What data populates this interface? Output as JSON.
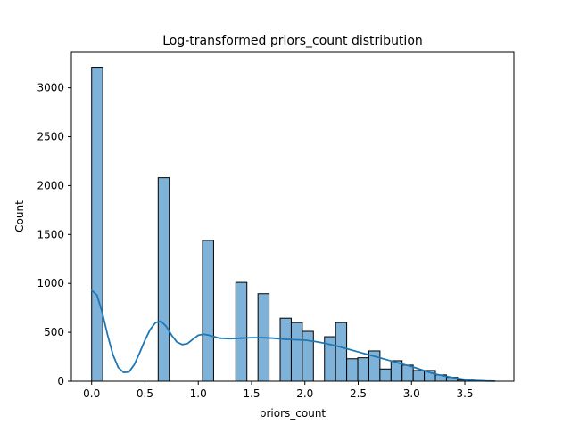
{
  "chart_data": {
    "type": "bar",
    "title": "Log-transformed priors_count distribution",
    "xlabel": "priors_count",
    "ylabel": "Count",
    "xlim": [
      -0.19,
      3.96
    ],
    "ylim": [
      0,
      3370
    ],
    "xticks": [
      "0.0",
      "0.5",
      "1.0",
      "1.5",
      "2.0",
      "2.5",
      "3.0",
      "3.5"
    ],
    "xtick_values": [
      0.0,
      0.5,
      1.0,
      1.5,
      2.0,
      2.5,
      3.0,
      3.5
    ],
    "yticks": [
      "0",
      "500",
      "1000",
      "1500",
      "2000",
      "2500",
      "3000"
    ],
    "ytick_values": [
      0,
      500,
      1000,
      1500,
      2000,
      2500,
      3000
    ],
    "grid": false,
    "bin_width": 0.104,
    "bins": [
      {
        "x0": 0.0,
        "count": 3210
      },
      {
        "x0": 0.104,
        "count": 0
      },
      {
        "x0": 0.208,
        "count": 0
      },
      {
        "x0": 0.312,
        "count": 0
      },
      {
        "x0": 0.416,
        "count": 0
      },
      {
        "x0": 0.52,
        "count": 0
      },
      {
        "x0": 0.624,
        "count": 2080
      },
      {
        "x0": 0.728,
        "count": 0
      },
      {
        "x0": 0.832,
        "count": 0
      },
      {
        "x0": 0.936,
        "count": 0
      },
      {
        "x0": 1.04,
        "count": 1440
      },
      {
        "x0": 1.144,
        "count": 0
      },
      {
        "x0": 1.248,
        "count": 0
      },
      {
        "x0": 1.352,
        "count": 1010
      },
      {
        "x0": 1.456,
        "count": 0
      },
      {
        "x0": 1.56,
        "count": 895
      },
      {
        "x0": 1.664,
        "count": 0
      },
      {
        "x0": 1.768,
        "count": 645
      },
      {
        "x0": 1.872,
        "count": 600
      },
      {
        "x0": 1.976,
        "count": 510
      },
      {
        "x0": 2.08,
        "count": 0
      },
      {
        "x0": 2.184,
        "count": 455
      },
      {
        "x0": 2.288,
        "count": 600
      },
      {
        "x0": 2.392,
        "count": 230
      },
      {
        "x0": 2.496,
        "count": 240
      },
      {
        "x0": 2.6,
        "count": 310
      },
      {
        "x0": 2.704,
        "count": 125
      },
      {
        "x0": 2.808,
        "count": 210
      },
      {
        "x0": 2.912,
        "count": 165
      },
      {
        "x0": 3.016,
        "count": 110
      },
      {
        "x0": 3.12,
        "count": 110
      },
      {
        "x0": 3.224,
        "count": 65
      },
      {
        "x0": 3.328,
        "count": 40
      },
      {
        "x0": 3.432,
        "count": 12
      },
      {
        "x0": 3.536,
        "count": 5
      },
      {
        "x0": 3.64,
        "count": 4
      }
    ],
    "kde": {
      "x": [
        0.0,
        0.05,
        0.1,
        0.15,
        0.2,
        0.25,
        0.3,
        0.35,
        0.4,
        0.45,
        0.5,
        0.55,
        0.6,
        0.65,
        0.7,
        0.75,
        0.8,
        0.85,
        0.9,
        0.95,
        1.0,
        1.05,
        1.1,
        1.15,
        1.2,
        1.3,
        1.4,
        1.5,
        1.6,
        1.7,
        1.8,
        1.9,
        2.0,
        2.1,
        2.2,
        2.3,
        2.4,
        2.5,
        2.6,
        2.7,
        2.8,
        2.9,
        3.0,
        3.1,
        3.2,
        3.3,
        3.4,
        3.5,
        3.6,
        3.7,
        3.78
      ],
      "y": [
        930,
        880,
        700,
        470,
        270,
        140,
        90,
        95,
        170,
        290,
        420,
        530,
        600,
        615,
        560,
        470,
        400,
        375,
        385,
        430,
        470,
        480,
        470,
        455,
        440,
        435,
        440,
        445,
        445,
        440,
        430,
        425,
        420,
        405,
        385,
        360,
        330,
        300,
        270,
        240,
        210,
        180,
        150,
        115,
        80,
        55,
        35,
        18,
        8,
        3,
        1
      ]
    },
    "colors": {
      "bar_fill": "#7fb2d8",
      "bar_edge": "#000000",
      "kde_line": "#1f77b4"
    }
  }
}
